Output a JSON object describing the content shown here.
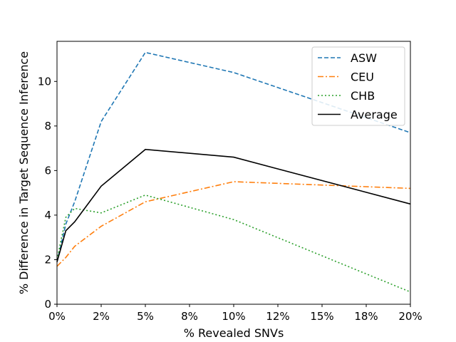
{
  "chart_data": {
    "type": "line",
    "xlabel": "% Revealed SNVs",
    "ylabel": "% Difference in Target Sequence Inference",
    "x_tick_labels": [
      "0%",
      "2%",
      "5%",
      "8%",
      "10%",
      "12%",
      "15%",
      "18%",
      "20%"
    ],
    "y_tick_labels": [
      "0",
      "2",
      "4",
      "6",
      "8",
      "10"
    ],
    "xlim": [
      0,
      20
    ],
    "ylim": [
      0,
      11.8
    ],
    "grid": false,
    "legend_position": "top-right",
    "series": [
      {
        "name": "ASW",
        "color": "#1f77b4",
        "style": "dashed",
        "x": [
          0,
          0.5,
          1,
          2.5,
          5,
          10,
          20
        ],
        "y": [
          1.9,
          3.6,
          4.6,
          8.2,
          11.3,
          10.4,
          7.7
        ]
      },
      {
        "name": "CEU",
        "color": "#ff7f0e",
        "style": "dashdot",
        "x": [
          0,
          0.5,
          1,
          2.5,
          5,
          10,
          20
        ],
        "y": [
          1.7,
          2.1,
          2.6,
          3.5,
          4.6,
          5.5,
          5.2
        ]
      },
      {
        "name": "CHB",
        "color": "#2ca02c",
        "style": "dotted",
        "x": [
          0,
          0.5,
          1,
          2.5,
          5,
          10,
          20
        ],
        "y": [
          2.0,
          3.9,
          4.3,
          4.1,
          4.9,
          3.8,
          0.55
        ]
      },
      {
        "name": "Average",
        "color": "#000000",
        "style": "solid",
        "x": [
          0,
          0.5,
          1,
          2.5,
          5,
          10,
          20
        ],
        "y": [
          1.9,
          3.3,
          3.7,
          5.3,
          6.95,
          6.6,
          4.5
        ]
      }
    ]
  }
}
